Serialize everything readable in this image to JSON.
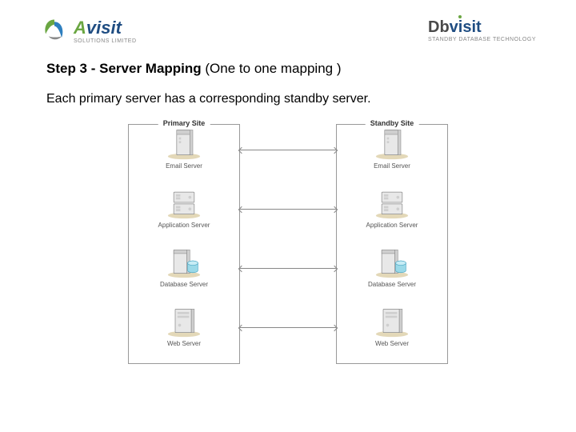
{
  "header": {
    "left_brand_a": "A",
    "left_brand_visit": "visit",
    "left_sub": "SOLUTIONS LIMITED",
    "left_swirl_color1": "#6aa642",
    "left_swirl_color2": "#2e7fbf",
    "left_a_color": "#6aa642",
    "left_visit_color": "#1f4d82",
    "right_brand_db": "Db",
    "right_brand_visit": "visit",
    "right_sub": "STANDBY DATABASE TECHNOLOGY",
    "right_db_color": "#4a4a4a",
    "right_visit_color": "#1f4d82",
    "right_dot_color": "#6aa642"
  },
  "content": {
    "title_bold": "Step 3 - Server Mapping",
    "title_plain": " (One to one mapping )",
    "description": "Each primary server has a corresponding standby server."
  },
  "diagram": {
    "type": "network",
    "left_site_label": "Primary Site",
    "right_site_label": "Standby Site",
    "border_color": "#999999",
    "label_color": "#555555",
    "label_fontsize": 8,
    "connector_color": "#888888",
    "server_body_fill": "#e8e8e8",
    "server_body_stroke": "#8a8a8a",
    "server_accent": "#cfcfcf",
    "db_cyl_fill": "#9ad9e8",
    "db_cyl_stroke": "#4aa7c4",
    "floor_fill": "#d7c89a",
    "servers": [
      {
        "label": "Email Server",
        "icon": "tower"
      },
      {
        "label": "Application Server",
        "icon": "rack"
      },
      {
        "label": "Database Server",
        "icon": "tower_db"
      },
      {
        "label": "Web Server",
        "icon": "tower_flat"
      }
    ]
  }
}
